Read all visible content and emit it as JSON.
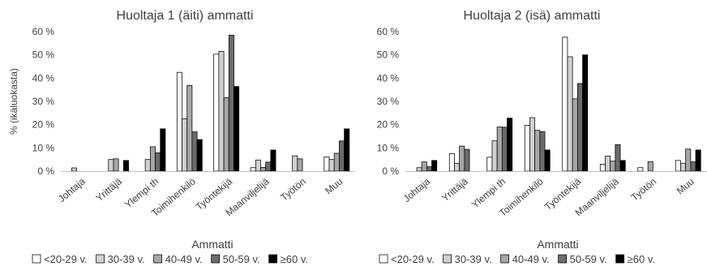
{
  "chart_data": [
    {
      "type": "bar",
      "title": "Huoltaja 1 (äiti) ammatti",
      "xlabel": "Ammatti",
      "ylabel": "% (ikäluokasta)",
      "ylim": [
        0,
        60
      ],
      "yticks": [
        "0 %",
        "10 %",
        "20 %",
        "30 %",
        "40 %",
        "50 %",
        "60 %"
      ],
      "grid": false,
      "legend_position": "bottom",
      "categories": [
        "Johtaja",
        "Yrittäjä",
        "Ylempi th",
        "Toimihenkilö",
        "Työntekijä",
        "Maanviljelijä",
        "Työtön",
        "Muu"
      ],
      "series": [
        {
          "name": "<20-29 v.",
          "color": "#ffffff",
          "values": [
            0,
            0,
            0,
            42.5,
            50.3,
            1.5,
            0,
            6.1
          ]
        },
        {
          "name": "30-39 v.",
          "color": "#d0d0d0",
          "values": [
            1.4,
            5.0,
            5.0,
            22.5,
            51.5,
            4.8,
            6.6,
            5.0
          ]
        },
        {
          "name": "40-49 v.",
          "color": "#a6a6a6",
          "values": [
            0,
            5.3,
            10.5,
            36.9,
            31.6,
            1.6,
            5.3,
            7.7
          ]
        },
        {
          "name": "50-59 v.",
          "color": "#6b6b6b",
          "values": [
            0,
            0,
            7.9,
            16.9,
            58.5,
            3.9,
            0,
            13.0
          ]
        },
        {
          "name": "≥60 v.",
          "color": "#000000",
          "values": [
            0,
            4.6,
            18.2,
            13.6,
            36.4,
            9.1,
            0,
            18.2
          ]
        }
      ]
    },
    {
      "type": "bar",
      "title": "Huoltaja 2 (isä) ammatti",
      "xlabel": "Ammatti",
      "ylabel": "",
      "ylim": [
        0,
        60
      ],
      "yticks": [
        "0 %",
        "10 %",
        "20 %",
        "30 %",
        "40 %",
        "50 %",
        "60 %"
      ],
      "grid": false,
      "legend_position": "bottom",
      "categories": [
        "Johtaja",
        "Yrittäjä",
        "Ylempi th",
        "Toimihenkilö",
        "Työntekijä",
        "Maanviljelijä",
        "Työtön",
        "Muu"
      ],
      "series": [
        {
          "name": "<20-29 v.",
          "color": "#ffffff",
          "values": [
            0,
            7.5,
            6.0,
            19.7,
            57.6,
            3.0,
            1.5,
            4.6
          ]
        },
        {
          "name": "30-39 v.",
          "color": "#d0d0d0",
          "values": [
            1.5,
            3.4,
            13.0,
            23.0,
            49.2,
            6.5,
            0,
            3.4
          ]
        },
        {
          "name": "40-49 v.",
          "color": "#a6a6a6",
          "values": [
            4.0,
            10.8,
            19.0,
            17.6,
            31.1,
            4.3,
            4.1,
            9.5
          ]
        },
        {
          "name": "50-59 v.",
          "color": "#6b6b6b",
          "values": [
            1.9,
            9.4,
            18.9,
            17.0,
            37.7,
            11.4,
            0,
            4.0
          ]
        },
        {
          "name": "≥60 v.",
          "color": "#000000",
          "values": [
            4.6,
            0,
            22.8,
            9.1,
            50.0,
            4.6,
            0,
            9.1
          ]
        }
      ]
    }
  ]
}
